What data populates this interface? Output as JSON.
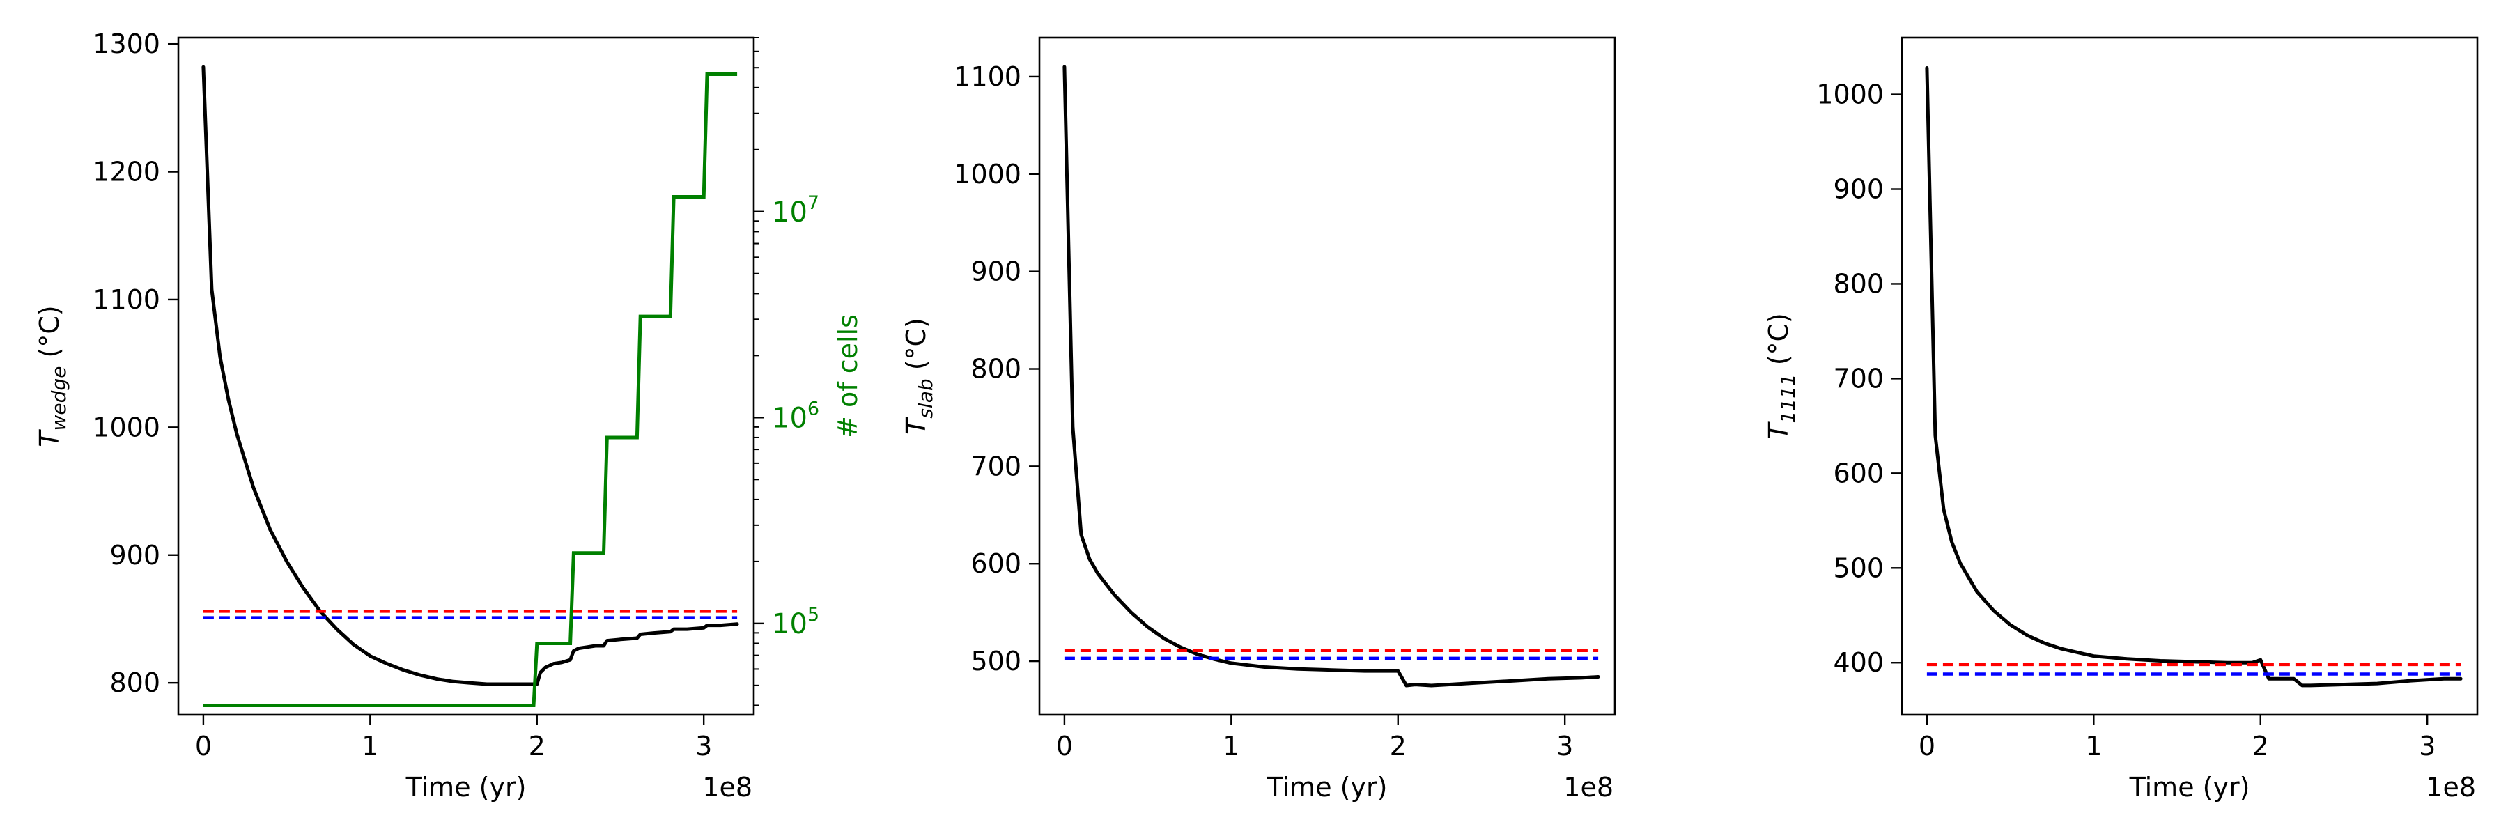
{
  "colors": {
    "temperature": "#000000",
    "upper_dashed": "#ff0000",
    "lower_dashed": "#0000ff",
    "cells": "#008000"
  },
  "chart_data": [
    {
      "type": "line",
      "panel": "wedge",
      "xlabel": "Time (yr)",
      "x_multiplier": "1e8",
      "ylabel": {
        "main": "T",
        "sub": "wedge",
        "unit": " (°C)"
      },
      "xlim": [
        -0.15,
        3.3
      ],
      "ylim": [
        775,
        1305
      ],
      "x_ticks": [
        0,
        1,
        2,
        3
      ],
      "y_ticks": [
        800,
        900,
        1000,
        1100,
        1200,
        1300
      ],
      "series": [
        {
          "role": "temperature",
          "x": [
            0,
            0.05,
            0.1,
            0.15,
            0.2,
            0.3,
            0.4,
            0.5,
            0.6,
            0.7,
            0.8,
            0.9,
            1.0,
            1.1,
            1.2,
            1.3,
            1.4,
            1.5,
            1.6,
            1.7,
            1.8,
            1.9,
            2.0,
            2.02,
            2.05,
            2.1,
            2.15,
            2.2,
            2.22,
            2.25,
            2.3,
            2.35,
            2.4,
            2.42,
            2.5,
            2.6,
            2.62,
            2.7,
            2.8,
            2.82,
            2.9,
            3.0,
            3.02,
            3.1,
            3.2
          ],
          "y": [
            1282,
            1108,
            1055,
            1022,
            995,
            953,
            920,
            895,
            874,
            856,
            842,
            830,
            821,
            815,
            810,
            806,
            803,
            801,
            800,
            799,
            799,
            799,
            799,
            808,
            812,
            815,
            816,
            818,
            825,
            827,
            828,
            829,
            829,
            833,
            834,
            835,
            838,
            839,
            840,
            842,
            842,
            843,
            845,
            845,
            846
          ]
        },
        {
          "role": "upper_dashed",
          "x": [
            0,
            3.2
          ],
          "y": [
            856,
            856
          ]
        },
        {
          "role": "lower_dashed",
          "x": [
            0,
            3.2
          ],
          "y": [
            851,
            851
          ]
        }
      ],
      "secondary_axis": {
        "ylabel": "# of cells",
        "scale": "log",
        "ylim": [
          36000,
          70000000
        ],
        "major_ticks": [
          100000,
          1000000,
          10000000
        ],
        "major_tick_labels": [
          {
            "base": "10",
            "exp": "5"
          },
          {
            "base": "10",
            "exp": "6"
          },
          {
            "base": "10",
            "exp": "7"
          }
        ],
        "series": {
          "role": "cells",
          "x": [
            0,
            1.98,
            2.0,
            2.02,
            2.2,
            2.22,
            2.4,
            2.42,
            2.6,
            2.62,
            2.8,
            2.82,
            3.0,
            3.02,
            3.2
          ],
          "y": [
            40000,
            40000,
            80000,
            80000,
            80000,
            220000,
            220000,
            800000,
            800000,
            3100000,
            3100000,
            11800000,
            11800000,
            46500000,
            46500000
          ]
        }
      }
    },
    {
      "type": "line",
      "panel": "slab",
      "xlabel": "Time (yr)",
      "x_multiplier": "1e8",
      "ylabel": {
        "main": "T",
        "sub": "slab",
        "unit": " (°C)"
      },
      "xlim": [
        -0.15,
        3.3
      ],
      "ylim": [
        445,
        1140
      ],
      "x_ticks": [
        0,
        1,
        2,
        3
      ],
      "y_ticks": [
        500,
        600,
        700,
        800,
        900,
        1000,
        1100
      ],
      "series": [
        {
          "role": "temperature",
          "x": [
            0,
            0.05,
            0.1,
            0.15,
            0.2,
            0.3,
            0.4,
            0.5,
            0.6,
            0.7,
            0.8,
            0.9,
            1.0,
            1.2,
            1.4,
            1.6,
            1.8,
            2.0,
            2.05,
            2.1,
            2.2,
            2.3,
            2.5,
            2.7,
            2.9,
            3.1,
            3.2
          ],
          "y": [
            1110,
            740,
            630,
            605,
            590,
            568,
            550,
            535,
            523,
            514,
            507,
            502,
            498,
            494,
            492,
            491,
            490,
            490,
            475,
            476,
            475,
            476,
            478,
            480,
            482,
            483,
            484
          ]
        },
        {
          "role": "upper_dashed",
          "x": [
            0,
            3.2
          ],
          "y": [
            511,
            511
          ]
        },
        {
          "role": "lower_dashed",
          "x": [
            0,
            3.2
          ],
          "y": [
            503,
            503
          ]
        }
      ]
    },
    {
      "type": "line",
      "panel": "1111",
      "xlabel": "Time (yr)",
      "x_multiplier": "1e8",
      "ylabel": {
        "main": "T",
        "sub": "1111",
        "unit": " (°C)"
      },
      "xlim": [
        -0.15,
        3.3
      ],
      "ylim": [
        345,
        1060
      ],
      "x_ticks": [
        0,
        1,
        2,
        3
      ],
      "y_ticks": [
        400,
        500,
        600,
        700,
        800,
        900,
        1000
      ],
      "series": [
        {
          "role": "temperature",
          "x": [
            0,
            0.05,
            0.1,
            0.15,
            0.2,
            0.3,
            0.4,
            0.5,
            0.6,
            0.7,
            0.8,
            0.9,
            1.0,
            1.2,
            1.4,
            1.6,
            1.8,
            1.95,
            2.0,
            2.05,
            2.1,
            2.2,
            2.25,
            2.3,
            2.5,
            2.7,
            2.9,
            3.1,
            3.2
          ],
          "y": [
            1028,
            640,
            562,
            527,
            505,
            475,
            455,
            440,
            429,
            421,
            415,
            411,
            407,
            404,
            402,
            401,
            400,
            400,
            403,
            383,
            383,
            383,
            376,
            376,
            377,
            378,
            381,
            383,
            383
          ]
        },
        {
          "role": "upper_dashed",
          "x": [
            0,
            3.2
          ],
          "y": [
            398,
            398
          ]
        },
        {
          "role": "lower_dashed",
          "x": [
            0,
            3.2
          ],
          "y": [
            388,
            388
          ]
        }
      ]
    }
  ]
}
